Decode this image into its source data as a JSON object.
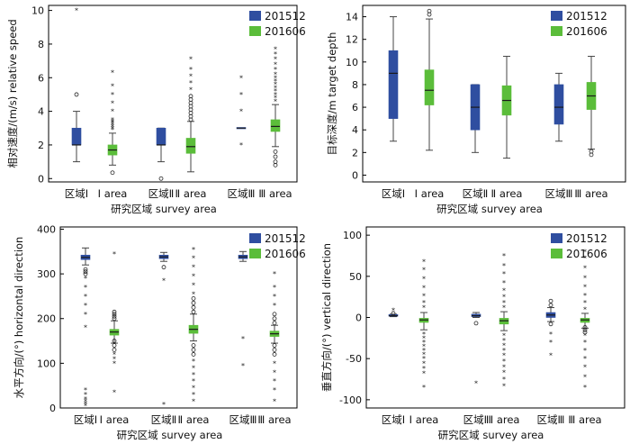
{
  "colors": {
    "series_201512": "#2f4ea0",
    "series_201606": "#5bbd3a"
  },
  "chart_data": [
    {
      "type": "box",
      "ylabel": "相对速度/(m/s) relative speed",
      "xlabel": "研究区域 survey area",
      "ylim": [
        -0.2,
        10.3
      ],
      "yticks": [
        0,
        2,
        4,
        6,
        8,
        10
      ],
      "categories": [
        "区域Ⅰ",
        "Ⅰ area",
        "区域Ⅱ",
        "Ⅱ area",
        "区域Ⅲ",
        "Ⅲ area"
      ],
      "legend": [
        "201512",
        "201606"
      ],
      "boxes": [
        {
          "series": "201512",
          "min": 1,
          "q1": 2,
          "median": 2,
          "q3": 3,
          "max": 4,
          "circles": [
            5
          ],
          "stars": [
            10
          ]
        },
        {
          "series": "201606",
          "min": 0.8,
          "q1": 1.4,
          "median": 1.7,
          "q3": 2.0,
          "max": 2.7,
          "circles": [
            0.35
          ],
          "stars": [
            2.9,
            3.0,
            3.1,
            3.2,
            3.3,
            3.4,
            3.5,
            4.0,
            4.5,
            5.0,
            5.5,
            6.3
          ]
        },
        {
          "series": "201512",
          "min": 1,
          "q1": 2,
          "median": 2,
          "q3": 3,
          "max": 3,
          "circles": [
            0
          ],
          "stars": []
        },
        {
          "series": "201606",
          "min": 0.4,
          "q1": 1.5,
          "median": 1.9,
          "q3": 2.4,
          "max": 3.4,
          "circles": [
            3.5,
            3.7,
            3.9,
            4.1,
            4.3,
            4.5,
            4.7,
            4.9
          ],
          "stars": [
            5.3,
            5.7,
            6.1,
            6.5,
            7.1
          ]
        },
        {
          "series": "201512",
          "min": 3,
          "q1": 3,
          "median": 3,
          "q3": 3,
          "max": 3,
          "circles": [],
          "stars": [
            2,
            4,
            5,
            6
          ]
        },
        {
          "series": "201606",
          "min": 1.9,
          "q1": 2.8,
          "median": 3.1,
          "q3": 3.5,
          "max": 4.4,
          "circles": [
            0.8,
            1.0,
            1.3,
            1.6
          ],
          "stars": [
            4.6,
            4.8,
            5.0,
            5.2,
            5.4,
            5.6,
            5.8,
            6.0,
            6.2,
            6.5,
            6.8,
            7.1,
            7.4,
            7.7
          ]
        }
      ]
    },
    {
      "type": "box",
      "ylabel": "目标深度/m target depth",
      "xlabel": "研究区域 survey area",
      "ylim": [
        -0.6,
        15
      ],
      "yticks": [
        0,
        2,
        4,
        6,
        8,
        10,
        12,
        14
      ],
      "categories": [
        "区域Ⅰ",
        "Ⅰ area",
        "区域Ⅱ",
        "Ⅱ area",
        "区域Ⅲ",
        "Ⅲ area"
      ],
      "legend": [
        "201512",
        "201606"
      ],
      "boxes": [
        {
          "series": "201512",
          "min": 3,
          "q1": 5,
          "median": 9,
          "q3": 11,
          "max": 14,
          "circles": [],
          "stars": []
        },
        {
          "series": "201606",
          "min": 2.2,
          "q1": 6.2,
          "median": 7.5,
          "q3": 9.3,
          "max": 13.8,
          "circles": [
            14.2,
            14.5
          ],
          "stars": []
        },
        {
          "series": "201512",
          "min": 2,
          "q1": 4,
          "median": 6,
          "q3": 8,
          "max": 8,
          "circles": [],
          "stars": []
        },
        {
          "series": "201606",
          "min": 1.5,
          "q1": 5.3,
          "median": 6.6,
          "q3": 7.9,
          "max": 10.5,
          "circles": [],
          "stars": []
        },
        {
          "series": "201512",
          "min": 3,
          "q1": 4.5,
          "median": 6,
          "q3": 8,
          "max": 9,
          "circles": [],
          "stars": []
        },
        {
          "series": "201606",
          "min": 2.3,
          "q1": 5.8,
          "median": 7.0,
          "q3": 8.2,
          "max": 10.5,
          "circles": [
            1.8,
            2.1
          ],
          "stars": []
        }
      ]
    },
    {
      "type": "box",
      "ylabel": "水平方向/(°) horizontal direction",
      "xlabel": "研究区域 survey area",
      "ylim": [
        0,
        405
      ],
      "yticks": [
        0,
        100,
        200,
        300,
        400
      ],
      "categories": [
        "区域Ⅰ",
        "Ⅰ area",
        "区域Ⅱ",
        "Ⅱ area",
        "区域Ⅲ",
        "Ⅲ area"
      ],
      "legend": [
        "201512",
        "201606"
      ],
      "boxes": [
        {
          "series": "201512",
          "min": 320,
          "q1": 332,
          "median": 337,
          "q3": 342,
          "max": 358,
          "circles": [
            300,
            305,
            310
          ],
          "stars": [
            5,
            10,
            15,
            20,
            30,
            40,
            180,
            210,
            230,
            250,
            270,
            290
          ]
        },
        {
          "series": "201606",
          "min": 145,
          "q1": 163,
          "median": 170,
          "q3": 176,
          "max": 195,
          "circles": [
            130,
            140,
            150,
            200,
            205,
            210,
            215
          ],
          "stars": [
            35,
            100,
            110,
            120,
            345
          ]
        },
        {
          "series": "201512",
          "min": 328,
          "q1": 334,
          "median": 338,
          "q3": 342,
          "max": 348,
          "circles": [
            315
          ],
          "stars": [
            8,
            285
          ]
        },
        {
          "series": "201606",
          "min": 150,
          "q1": 167,
          "median": 176,
          "q3": 185,
          "max": 210,
          "circles": [
            120,
            130,
            140,
            215,
            225,
            235,
            245
          ],
          "stars": [
            15,
            30,
            45,
            60,
            75,
            90,
            105,
            255,
            275,
            295,
            315,
            335,
            355
          ]
        },
        {
          "series": "201512",
          "min": 328,
          "q1": 334,
          "median": 338,
          "q3": 342,
          "max": 350,
          "circles": [],
          "stars": [
            95,
            155
          ]
        },
        {
          "series": "201606",
          "min": 145,
          "q1": 160,
          "median": 166,
          "q3": 172,
          "max": 185,
          "circles": [
            120,
            130,
            140,
            190,
            200,
            210
          ],
          "stars": [
            15,
            40,
            60,
            80,
            100,
            230,
            250,
            270,
            300
          ]
        }
      ]
    },
    {
      "type": "box",
      "ylabel": "垂直方向/(°) vertical direction",
      "xlabel": "研究区域 survey area",
      "ylim": [
        -110,
        110
      ],
      "yticks": [
        -100,
        -50,
        0,
        50,
        100
      ],
      "categories": [
        "区域Ⅰ",
        "Ⅰ area",
        "区域Ⅱ",
        "Ⅱ area",
        "区域Ⅲ",
        "Ⅲ area"
      ],
      "legend": [
        "201512",
        "201606"
      ],
      "boxes": [
        {
          "series": "201512",
          "min": 1,
          "q1": 1.5,
          "median": 2,
          "q3": 3.5,
          "max": 4,
          "circles": [
            5
          ],
          "stars": [
            9
          ]
        },
        {
          "series": "201606",
          "min": -15,
          "q1": -6,
          "median": -3,
          "q3": -1,
          "max": 6,
          "circles": [],
          "stars": [
            -85,
            -68,
            -62,
            -56,
            -50,
            -45,
            -40,
            -35,
            -30,
            -25,
            -20,
            12,
            18,
            26,
            36,
            47,
            58,
            68
          ]
        },
        {
          "series": "201512",
          "min": 0,
          "q1": 1,
          "median": 2,
          "q3": 4,
          "max": 6,
          "circles": [
            -7
          ],
          "stars": [
            -80
          ]
        },
        {
          "series": "201606",
          "min": -16,
          "q1": -8,
          "median": -4,
          "q3": -1,
          "max": 7,
          "circles": [],
          "stars": [
            -83,
            -75,
            -67,
            -60,
            -53,
            -46,
            -40,
            -34,
            -28,
            -22,
            12,
            18,
            25,
            33,
            42,
            53,
            63,
            75
          ]
        },
        {
          "series": "201512",
          "min": -5,
          "q1": 0,
          "median": 3,
          "q3": 6,
          "max": 12,
          "circles": [
            -8,
            15,
            20
          ],
          "stars": [
            -46,
            -30,
            -20
          ]
        },
        {
          "series": "201606",
          "min": -13,
          "q1": -6,
          "median": -3,
          "q3": -1,
          "max": 5,
          "circles": [
            -12,
            -15,
            -18
          ],
          "stars": [
            -85,
            -72,
            -60,
            -50,
            -40,
            -30,
            -22,
            10,
            18,
            27,
            37,
            48,
            60,
            72,
            80
          ]
        }
      ]
    }
  ]
}
